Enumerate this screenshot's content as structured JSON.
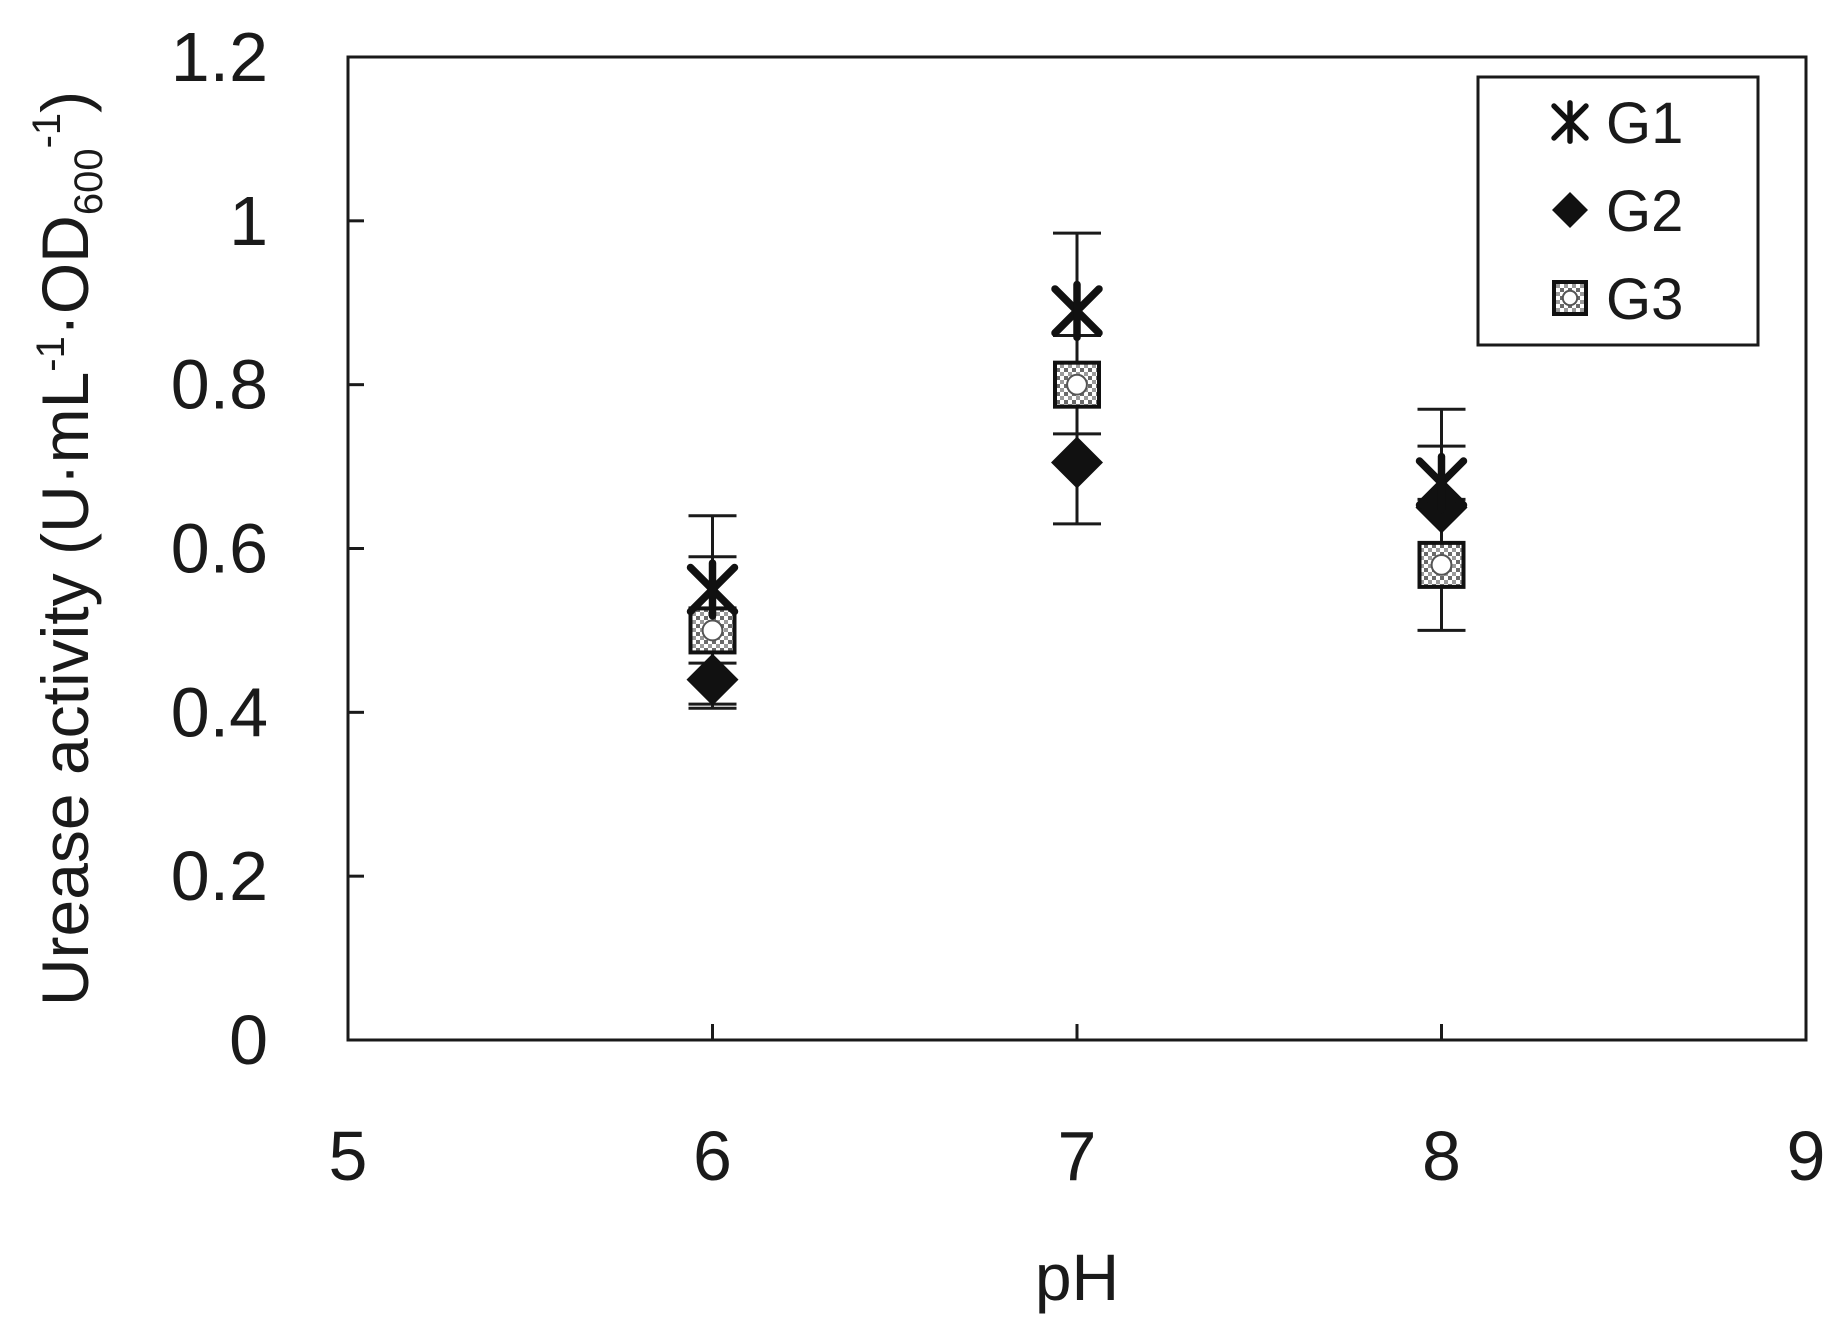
{
  "chart_data": {
    "type": "scatter",
    "title": "",
    "xlabel": "pH",
    "ylabel": {
      "prefix": "Urease activity (U·mL",
      "sup1": "-1",
      "mid": "·OD",
      "sub": "600",
      "sup2": "-1",
      "suffix": ")"
    },
    "xlim": [
      5,
      9
    ],
    "ylim": [
      0,
      1.2
    ],
    "x_ticks": [
      "5",
      "6",
      "7",
      "8",
      "9"
    ],
    "y_ticks": [
      "0",
      "0.2",
      "0.4",
      "0.6",
      "0.8",
      "1",
      "1.2"
    ],
    "grid": false,
    "legend_position": "top-right",
    "series": [
      {
        "name": "G1",
        "marker": "star",
        "x": [
          6,
          7,
          8
        ],
        "y": [
          0.55,
          0.89,
          0.68
        ],
        "error": [
          0.09,
          0.095,
          0.09
        ]
      },
      {
        "name": "G2",
        "marker": "diamond",
        "x": [
          6,
          7,
          8
        ],
        "y": [
          0.44,
          0.705,
          0.65
        ],
        "error": [
          0.035,
          0.075,
          0.075
        ]
      },
      {
        "name": "G3",
        "marker": "patterned-square",
        "x": [
          6,
          7,
          8
        ],
        "y": [
          0.5,
          0.8,
          0.58
        ],
        "error": [
          0.09,
          0.06,
          0.08
        ]
      }
    ]
  }
}
